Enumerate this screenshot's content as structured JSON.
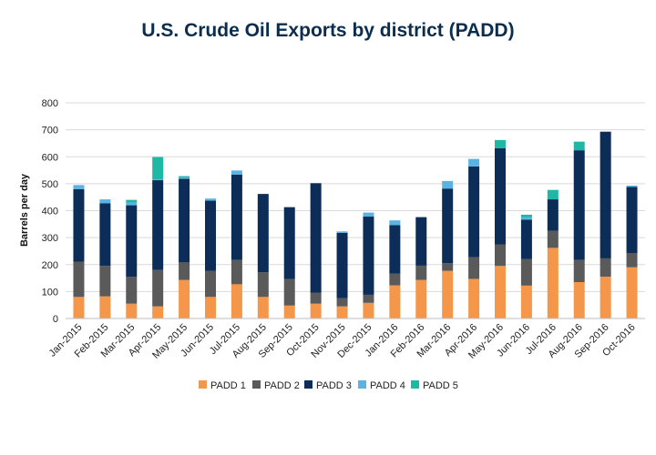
{
  "title": "U.S. Crude Oil Exports by district (PADD)",
  "chart_data": {
    "type": "bar",
    "stacked": true,
    "title": "U.S. Crude Oil Exports by district (PADD)",
    "xlabel": "",
    "ylabel": "Barrels per day",
    "ylim": [
      0,
      800
    ],
    "yticks": [
      0,
      100,
      200,
      300,
      400,
      500,
      600,
      700,
      800
    ],
    "grid": true,
    "legend_position": "bottom",
    "categories": [
      "Jan-2015",
      "Feb-2015",
      "Mar-2015",
      "Apr-2015",
      "May-2015",
      "Jun-2015",
      "Jul-2015",
      "Aug-2015",
      "Sep-2015",
      "Oct-2015",
      "Nov-2015",
      "Dec-2015",
      "Jan-2016",
      "Feb-2016",
      "Mar-2016",
      "Apr-2016",
      "May-2016",
      "Jun-2016",
      "Jul-2016",
      "Aug-2016",
      "Sep-2016",
      "Oct-2016"
    ],
    "series": [
      {
        "name": "PADD 1",
        "color": "#f4974a",
        "values": [
          80,
          82,
          55,
          45,
          143,
          80,
          127,
          80,
          48,
          55,
          45,
          58,
          123,
          143,
          177,
          147,
          195,
          122,
          262,
          135,
          155,
          190
        ]
      },
      {
        "name": "PADD 2",
        "color": "#5a5a5a",
        "values": [
          130,
          113,
          100,
          135,
          65,
          97,
          90,
          92,
          98,
          40,
          30,
          30,
          43,
          53,
          28,
          80,
          80,
          98,
          63,
          82,
          68,
          53
        ]
      },
      {
        "name": "PADD 3",
        "color": "#0b2d57",
        "values": [
          270,
          232,
          265,
          333,
          310,
          260,
          317,
          290,
          267,
          407,
          243,
          290,
          180,
          180,
          277,
          337,
          357,
          147,
          117,
          407,
          470,
          245
        ]
      },
      {
        "name": "PADD 4",
        "color": "#5ab4e3",
        "values": [
          15,
          15,
          10,
          3,
          5,
          8,
          15,
          0,
          0,
          0,
          5,
          15,
          18,
          0,
          28,
          28,
          0,
          8,
          0,
          0,
          0,
          5
        ]
      },
      {
        "name": "PADD 5",
        "color": "#1fb8a4",
        "values": [
          0,
          0,
          10,
          83,
          5,
          0,
          0,
          0,
          0,
          0,
          0,
          0,
          0,
          0,
          0,
          0,
          30,
          10,
          35,
          32,
          0,
          0
        ]
      }
    ]
  }
}
